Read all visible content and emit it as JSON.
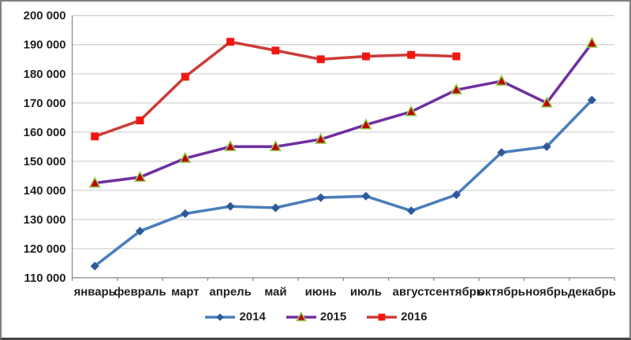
{
  "chart_data": {
    "type": "line",
    "title": "",
    "xlabel": "",
    "ylabel": "",
    "categories": [
      "январь",
      "февраль",
      "март",
      "апрель",
      "май",
      "июнь",
      "июль",
      "август",
      "сентябрь",
      "октябрь",
      "ноябрь",
      "декабрь"
    ],
    "series": [
      {
        "name": "2014",
        "marker": "diamond",
        "color": "#4A7EBB",
        "marker_color": "#2D5A9B",
        "values": [
          114000,
          126000,
          132000,
          134500,
          134000,
          137500,
          138000,
          133000,
          138500,
          153000,
          155000,
          171000
        ]
      },
      {
        "name": "2015",
        "marker": "triangle",
        "color": "#7030A0",
        "marker_color": "#C00000",
        "marker_edge": "#92D050",
        "values": [
          142500,
          144500,
          151000,
          155000,
          155000,
          157500,
          162500,
          167000,
          174500,
          177500,
          170000,
          190500
        ]
      },
      {
        "name": "2016",
        "marker": "square",
        "color": "#CB3D38",
        "marker_color": "#F5150F",
        "values": [
          158500,
          164000,
          179000,
          191000,
          188000,
          185000,
          186000,
          186500,
          186000,
          null,
          null,
          null
        ]
      }
    ],
    "ylim": [
      110000,
      200000
    ],
    "ytick_step": 10000,
    "ytick_labels": [
      "200 000",
      "190 000",
      "180 000",
      "170 000",
      "160 000",
      "150 000",
      "140 000",
      "130 000",
      "120 000",
      "110 000"
    ],
    "grid": "horizontal",
    "legend_position": "bottom",
    "colors": {
      "gridline": "#C6C6C6",
      "axis": "#8C8C8C",
      "text": "#1F1F1F",
      "background": "#FFFFFF",
      "border": "#7F7F7F"
    }
  }
}
